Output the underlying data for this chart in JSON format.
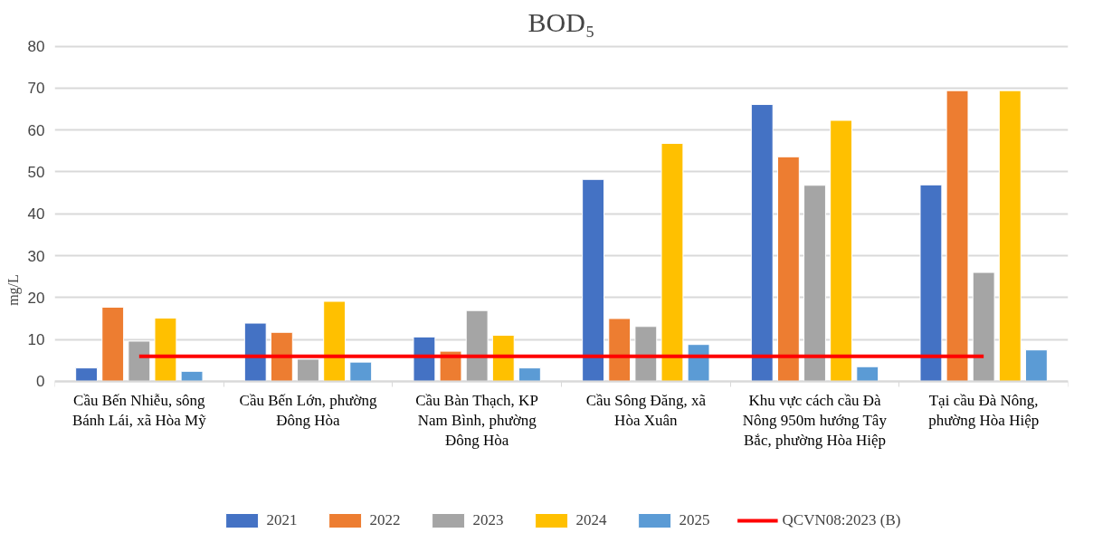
{
  "chart_data": {
    "type": "bar",
    "title": "BOD₅",
    "ylabel": "mg/L",
    "categories": [
      "Cầu Bến Nhiễu, sông Bánh Lái, xã Hòa Mỹ",
      "Cầu Bến Lớn, phường Đông Hòa",
      "Cầu Bàn Thạch, KP Nam Bình, phường Đông Hòa",
      "Cầu Sông Đăng, xã Hòa Xuân",
      "Khu vực cách cầu Đà Nông 950m hướng Tây Bắc, phường Hòa Hiệp",
      "Tại cầu Đà Nông, phường Hòa Hiệp"
    ],
    "series": [
      {
        "name": "2021",
        "color": "#4472c4",
        "values": [
          3.2,
          13.9,
          10.6,
          48.2,
          66.1,
          46.9
        ]
      },
      {
        "name": "2022",
        "color": "#ed7d31",
        "values": [
          17.7,
          11.7,
          7.2,
          15.0,
          53.6,
          69.4
        ]
      },
      {
        "name": "2023",
        "color": "#a5a5a5",
        "values": [
          9.6,
          5.3,
          16.9,
          13.1,
          46.8,
          26.0
        ]
      },
      {
        "name": "2024",
        "color": "#ffc000",
        "values": [
          15.1,
          19.1,
          11.0,
          56.8,
          62.3,
          69.4
        ]
      },
      {
        "name": "2025",
        "color": "#5b9bd5",
        "values": [
          2.4,
          4.6,
          3.2,
          8.8,
          3.5,
          7.5
        ]
      },
      {
        "name": "QCVN08:2023 (B)",
        "color": "#ff0000",
        "type": "line",
        "values": [
          6,
          6,
          6,
          6,
          6,
          6
        ]
      }
    ],
    "ylim": [
      0,
      80
    ],
    "yticks": [
      0,
      10,
      20,
      30,
      40,
      50,
      60,
      70,
      80
    ],
    "grid": "y",
    "legend": "bottom"
  }
}
